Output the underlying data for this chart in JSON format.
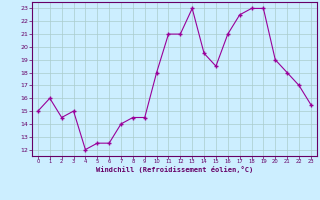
{
  "x": [
    0,
    1,
    2,
    3,
    4,
    5,
    6,
    7,
    8,
    9,
    10,
    11,
    12,
    13,
    14,
    15,
    16,
    17,
    18,
    19,
    20,
    21,
    22,
    23
  ],
  "y": [
    15,
    16,
    14.5,
    15,
    12,
    12.5,
    12.5,
    14,
    14.5,
    14.5,
    18,
    21,
    21,
    23,
    19.5,
    18.5,
    21,
    22.5,
    23,
    23,
    19,
    18,
    17,
    15.5
  ],
  "line_color": "#990099",
  "marker_color": "#990099",
  "bg_color": "#cceeff",
  "grid_color": "#aacccc",
  "axis_label_color": "#660066",
  "xlabel": "Windchill (Refroidissement éolien,°C)",
  "ylim": [
    11.5,
    23.5
  ],
  "xlim": [
    -0.5,
    23.5
  ],
  "yticks": [
    12,
    13,
    14,
    15,
    16,
    17,
    18,
    19,
    20,
    21,
    22,
    23
  ],
  "xticks": [
    0,
    1,
    2,
    3,
    4,
    5,
    6,
    7,
    8,
    9,
    10,
    11,
    12,
    13,
    14,
    15,
    16,
    17,
    18,
    19,
    20,
    21,
    22,
    23
  ],
  "tick_label_color": "#660066",
  "border_color": "#660066",
  "spine_color": "#660066"
}
